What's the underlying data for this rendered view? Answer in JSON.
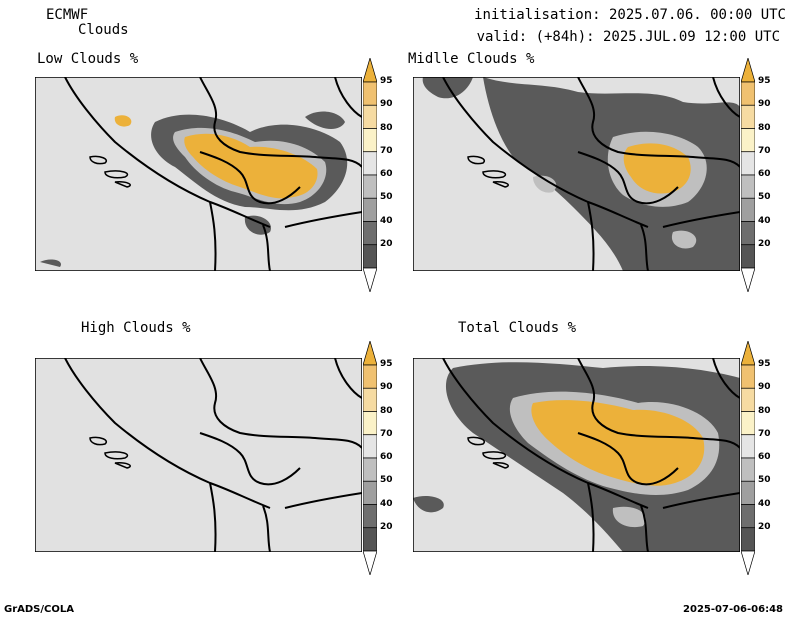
{
  "header": {
    "model": "ECMWF",
    "product": "Clouds",
    "initialisation": "initialisation: 2025.07.06. 00:00 UTC",
    "valid": "valid: (+84h): 2025.JUL.09 12:00 UTC"
  },
  "panels": [
    {
      "id": "low",
      "title": "Low Clouds %"
    },
    {
      "id": "middle",
      "title": "Midlle Clouds %"
    },
    {
      "id": "high",
      "title": "High Clouds %"
    },
    {
      "id": "total",
      "title": "Total Clouds %"
    }
  ],
  "colorbar": {
    "levels": [
      "95",
      "90",
      "80",
      "70",
      "60",
      "50",
      "40",
      "20"
    ],
    "colors": [
      "#ecb13a",
      "#f0c170",
      "#f6dba2",
      "#fbf2c8",
      "#e5e5e5",
      "#bfbfbf",
      "#9f9f9f",
      "#6e6e6e",
      "#555555",
      "#ffffff"
    ]
  },
  "footer": {
    "left": "GrADS/COLA",
    "right": "2025-07-06-06:48"
  },
  "colors": {
    "background_gray": "#e1e1e1",
    "orange": "#ecb13a",
    "dark_gray": "#5a5a5a",
    "border": "#000000"
  }
}
